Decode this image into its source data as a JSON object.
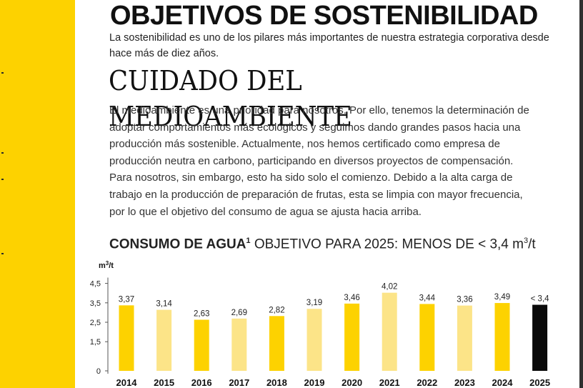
{
  "page": {
    "title": "OBJETIVOS DE SOSTENIBILIDAD",
    "intro": "La sostenibilidad es uno de los pilares más importantes de nuestra estrategia corporativa desde hace más de diez años.",
    "subtitle": "CUIDADO DEL MEDIOAMBIENTE",
    "body": "El medioambiente es una prioridad para nosotros. Por ello, tenemos la determinación de adoptar comportamientos más ecológicos y seguimos dando grandes pasos hacia una producción más sostenible. Actualmente, nos hemos certificado como empresa de producción neutra en carbono, participando en diversos proyectos de compensación. Para nosotros, sin embargo, esto ha sido solo el comienzo. Debido a la alta carga de trabajo en la producción de preparación de frutas, esta se limpia con mayor frecuencia, por lo que el objetivo del consumo de agua se ajusta hacia arriba."
  },
  "chart_heading": {
    "bold": "CONSUMO DE AGUA",
    "footnote": "1",
    "rest": " OBJETIVO PARA 2025: MENOS DE < 3,4 m",
    "exp": "3",
    "tail": "/t"
  },
  "colors": {
    "brand_yellow": "#FDD200",
    "light_yellow": "#FCE488",
    "target_black": "#0a0a0a"
  },
  "chart_data": {
    "type": "bar",
    "title": "CONSUMO DE AGUA OBJETIVO PARA 2025: MENOS DE < 3,4 m3/t",
    "ylabel": "m3/t",
    "xlabel": "",
    "ylim": [
      0,
      5
    ],
    "yticks": [
      0,
      1.5,
      2.5,
      3.5,
      4.5
    ],
    "ytick_labels": [
      "0",
      "1,5",
      "2,5",
      "3,5",
      "4,5"
    ],
    "categories": [
      "2014",
      "2015",
      "2016",
      "2017",
      "2018",
      "2019",
      "2020",
      "2021",
      "2022",
      "2023",
      "2024",
      "2025"
    ],
    "values": [
      3.37,
      3.14,
      2.63,
      2.69,
      2.82,
      3.19,
      3.46,
      4.02,
      3.44,
      3.36,
      3.49,
      3.4
    ],
    "labels": [
      "3,37",
      "3,14",
      "2,63",
      "2,69",
      "2,82",
      "3,19",
      "3,46",
      "4,02",
      "3,44",
      "3,36",
      "3,49",
      "< 3,4"
    ],
    "bar_colors": [
      "#FDD200",
      "#FCE488",
      "#FDD200",
      "#FCE488",
      "#FDD200",
      "#FCE488",
      "#FDD200",
      "#FCE488",
      "#FDD200",
      "#FCE488",
      "#FDD200",
      "#0a0a0a"
    ]
  }
}
